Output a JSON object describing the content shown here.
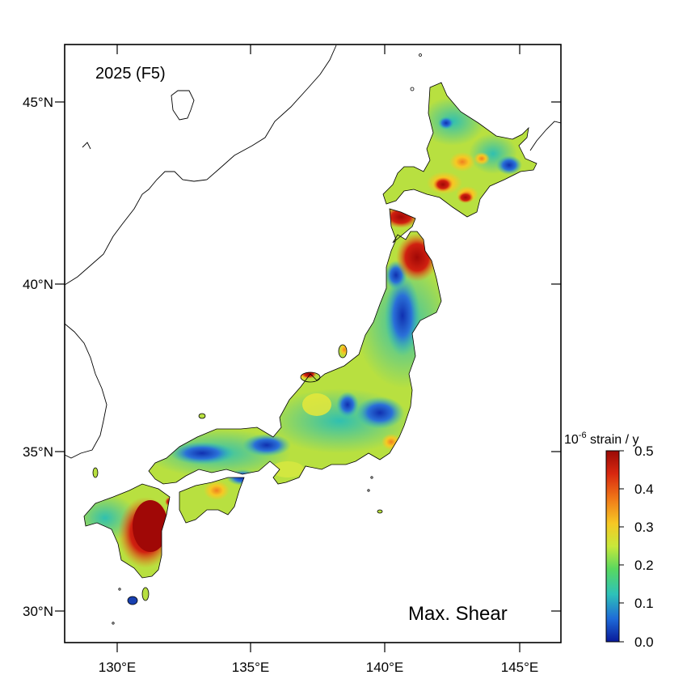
{
  "map": {
    "year_label": "2025 (F5)",
    "quantity_label": "Max. Shear",
    "lat_ticks": [
      "45°N",
      "40°N",
      "35°N",
      "30°N"
    ],
    "lon_ticks": [
      "130°E",
      "135°E",
      "140°E",
      "145°E"
    ]
  },
  "colorbar": {
    "title_base": "10",
    "title_exp": "-6",
    "title_rest": " strain / y",
    "ticks": [
      "0.5",
      "0.4",
      "0.3",
      "0.2",
      "0.1",
      "0.0"
    ],
    "range": [
      0.0,
      0.5
    ],
    "colors": [
      "#0a1a9a",
      "#1e6ad8",
      "#2ec2b8",
      "#58d860",
      "#c8e83a",
      "#f6c824",
      "#f07818",
      "#d82810",
      "#9a0a06"
    ]
  }
}
